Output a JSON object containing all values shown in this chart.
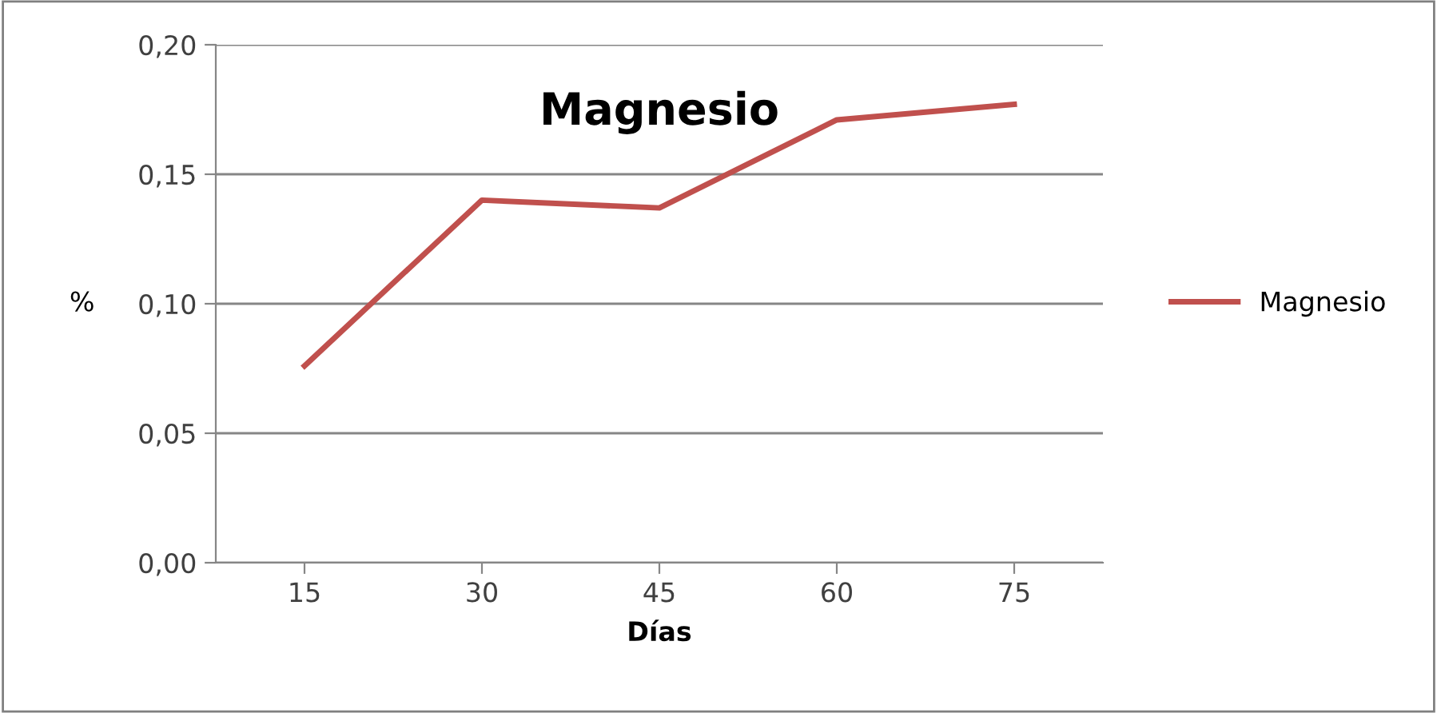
{
  "chart_data": {
    "type": "line",
    "title": "Magnesio",
    "xlabel": "Días",
    "ylabel": "%",
    "categories": [
      "15",
      "30",
      "45",
      "60",
      "75"
    ],
    "series": [
      {
        "name": "Magnesio",
        "color": "#c0504d",
        "values": [
          0.076,
          0.14,
          0.137,
          0.171,
          0.177
        ]
      }
    ],
    "ylim": [
      0,
      0.2
    ],
    "yticks": [
      {
        "value": 0,
        "label": "0,00"
      },
      {
        "value": 0.05,
        "label": "0,05"
      },
      {
        "value": 0.1,
        "label": "0,10"
      },
      {
        "value": 0.15,
        "label": "0,15"
      },
      {
        "value": 0.2,
        "label": "0,20"
      }
    ],
    "grid": "y",
    "legend": "right",
    "marker": "none",
    "line_style": "solid"
  }
}
